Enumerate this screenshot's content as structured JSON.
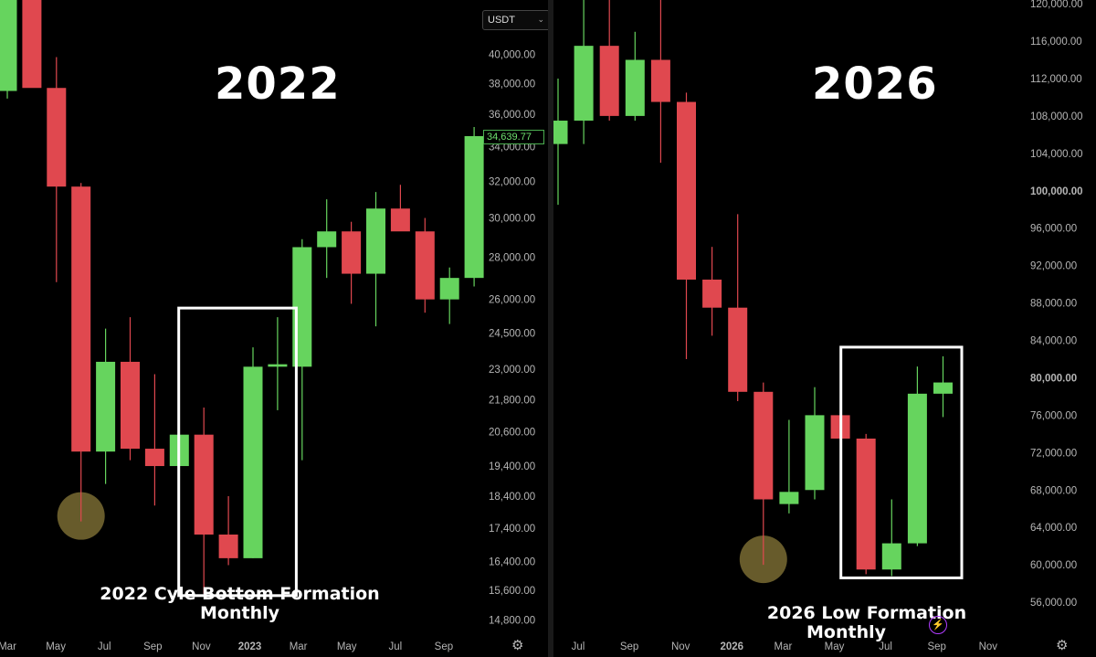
{
  "left_panel": {
    "title": "2022",
    "caption_line1": "2022 Cyle Bottom Formation",
    "caption_line2": "Monthly",
    "currency_label": "USDT",
    "current_price": "34,639.77",
    "settings_icon": "gear-icon"
  },
  "right_panel": {
    "title": "2026",
    "caption_line1": "2026  Low  Formation",
    "caption_line2": "Monthly",
    "settings_icon": "gear-icon",
    "badge_icon": "lightning-icon"
  },
  "colors": {
    "bull": "#66d45e",
    "bear": "#e0484f",
    "highlight_box": "#ffffff",
    "marker": "#8a7a3a",
    "axis_text": "#b5b5b5"
  },
  "chart_data": [
    {
      "type": "candlestick",
      "interval": "Monthly",
      "title": "2022",
      "x_tick_labels": [
        "Mar",
        "May",
        "Jul",
        "Sep",
        "Nov",
        "2023",
        "Mar",
        "May",
        "Jul",
        "Sep"
      ],
      "y_tick_labels": [
        "40,000.00",
        "38,000.00",
        "36,000.00",
        "34,000.00",
        "32,000.00",
        "30,000.00",
        "28,000.00",
        "26,000.00",
        "24,500.00",
        "23,000.00",
        "21,800.00",
        "20,600.00",
        "19,400.00",
        "18,400.00",
        "17,400.00",
        "16,400.00",
        "15,600.00",
        "14,800.00"
      ],
      "y_ticks": [
        40000,
        38000,
        36000,
        34000,
        32000,
        30000,
        28000,
        26000,
        24500,
        23000,
        21800,
        20600,
        19400,
        18400,
        17400,
        16400,
        15600,
        14800
      ],
      "scale": "log",
      "ylim": [
        14300,
        44000
      ],
      "candles": [
        {
          "label": "Mar 2022",
          "open": 37500,
          "high": 48000,
          "low": 37000,
          "close": 46500
        },
        {
          "label": "Apr 2022",
          "open": 46500,
          "high": 48000,
          "low": 37800,
          "close": 37700
        },
        {
          "label": "May 2022",
          "open": 37700,
          "high": 39800,
          "low": 26800,
          "close": 31700
        },
        {
          "label": "Jun 2022",
          "open": 31700,
          "high": 31900,
          "low": 17600,
          "close": 19900
        },
        {
          "label": "Jul 2022",
          "open": 19900,
          "high": 24700,
          "low": 18800,
          "close": 23300
        },
        {
          "label": "Aug 2022",
          "open": 23300,
          "high": 25200,
          "low": 19600,
          "close": 20000
        },
        {
          "label": "Sep 2022",
          "open": 20000,
          "high": 22800,
          "low": 18100,
          "close": 19400
        },
        {
          "label": "Oct 2022",
          "open": 19400,
          "high": 21000,
          "low": 18200,
          "close": 20500
        },
        {
          "label": "Nov 2022",
          "open": 20500,
          "high": 21500,
          "low": 15500,
          "close": 17200
        },
        {
          "label": "Dec 2022",
          "open": 17200,
          "high": 18400,
          "low": 16300,
          "close": 16500
        },
        {
          "label": "Jan 2023",
          "open": 16500,
          "high": 23900,
          "low": 16500,
          "close": 23100
        },
        {
          "label": "Feb 2023",
          "open": 23100,
          "high": 25200,
          "low": 21400,
          "close": 23200
        },
        {
          "label": "Mar 2023",
          "open": 23100,
          "high": 28900,
          "low": 19600,
          "close": 28500
        },
        {
          "label": "Apr 2023",
          "open": 28500,
          "high": 31000,
          "low": 27000,
          "close": 29300
        },
        {
          "label": "May 2023",
          "open": 29300,
          "high": 29800,
          "low": 25800,
          "close": 27200
        },
        {
          "label": "Jun 2023",
          "open": 27200,
          "high": 31400,
          "low": 24800,
          "close": 30500
        },
        {
          "label": "Jul 2023",
          "open": 30500,
          "high": 31800,
          "low": 29500,
          "close": 29300
        },
        {
          "label": "Aug 2023",
          "open": 29300,
          "high": 30000,
          "low": 25400,
          "close": 26000
        },
        {
          "label": "Sep 2023",
          "open": 26000,
          "high": 27500,
          "low": 24900,
          "close": 27000
        },
        {
          "label": "Oct 2023",
          "open": 27000,
          "high": 35200,
          "low": 26600,
          "close": 34639.77
        }
      ],
      "highlight_box": {
        "from_candle": 8,
        "to_candle": 11
      },
      "marker_candle": 3
    },
    {
      "type": "candlestick",
      "interval": "Monthly",
      "title": "2026",
      "x_tick_labels": [
        "Jul",
        "Sep",
        "Nov",
        "2026",
        "Mar",
        "May",
        "Jul",
        "Sep",
        "Nov"
      ],
      "y_tick_labels": [
        "120,000.00",
        "116,000.00",
        "112,000.00",
        "108,000.00",
        "104,000.00",
        "100,000.00",
        "96,000.00",
        "92,000.00",
        "88,000.00",
        "84,000.00",
        "80,000.00",
        "76,000.00",
        "72,000.00",
        "68,000.00",
        "64,000.00",
        "60,000.00",
        "56,000.00"
      ],
      "y_ticks": [
        120000,
        116000,
        112000,
        108000,
        104000,
        100000,
        96000,
        92000,
        88000,
        84000,
        80000,
        76000,
        72000,
        68000,
        64000,
        60000,
        56000
      ],
      "scale": "linear",
      "ylim": [
        52000,
        120400
      ],
      "candles": [
        {
          "label": "Jun 2025",
          "open": 105000,
          "high": 112000,
          "low": 98500,
          "close": 107500
        },
        {
          "label": "Jul 2025",
          "open": 107500,
          "high": 123000,
          "low": 105000,
          "close": 115500
        },
        {
          "label": "Aug 2025",
          "open": 115500,
          "high": 124000,
          "low": 107500,
          "close": 108000
        },
        {
          "label": "Sep 2025",
          "open": 108000,
          "high": 117000,
          "low": 107500,
          "close": 114000
        },
        {
          "label": "Oct 2025",
          "open": 114000,
          "high": 126000,
          "low": 103000,
          "close": 109500
        },
        {
          "label": "Nov 2025",
          "open": 109500,
          "high": 110500,
          "low": 82000,
          "close": 90500
        },
        {
          "label": "Dec 2025",
          "open": 90500,
          "high": 94000,
          "low": 84500,
          "close": 87500
        },
        {
          "label": "Jan 2026",
          "open": 87500,
          "high": 97500,
          "low": 77500,
          "close": 78500
        },
        {
          "label": "Feb 2026",
          "open": 78500,
          "high": 79500,
          "low": 60000,
          "close": 67000
        },
        {
          "label": "Mar 2026",
          "open": 66500,
          "high": 75500,
          "low": 65500,
          "close": 67800
        },
        {
          "label": "Apr 2026",
          "open": 68000,
          "high": 79000,
          "low": 67000,
          "close": 76000
        },
        {
          "label": "May 2026",
          "open": 76000,
          "high": 76000,
          "low": 72000,
          "close": 73500
        },
        {
          "label": "Jun 2026",
          "open": 73500,
          "high": 74000,
          "low": 59000,
          "close": 59500
        },
        {
          "label": "Jul 2026",
          "open": 59500,
          "high": 67000,
          "low": 58800,
          "close": 62300
        },
        {
          "label": "Aug 2026",
          "open": 62300,
          "high": 81200,
          "low": 62000,
          "close": 78300
        },
        {
          "label": "Sep 2026",
          "open": 78300,
          "high": 82300,
          "low": 75800,
          "close": 79500
        }
      ],
      "highlight_box": {
        "from_candle": 12,
        "to_candle": 15
      },
      "marker_candle": 8
    }
  ]
}
